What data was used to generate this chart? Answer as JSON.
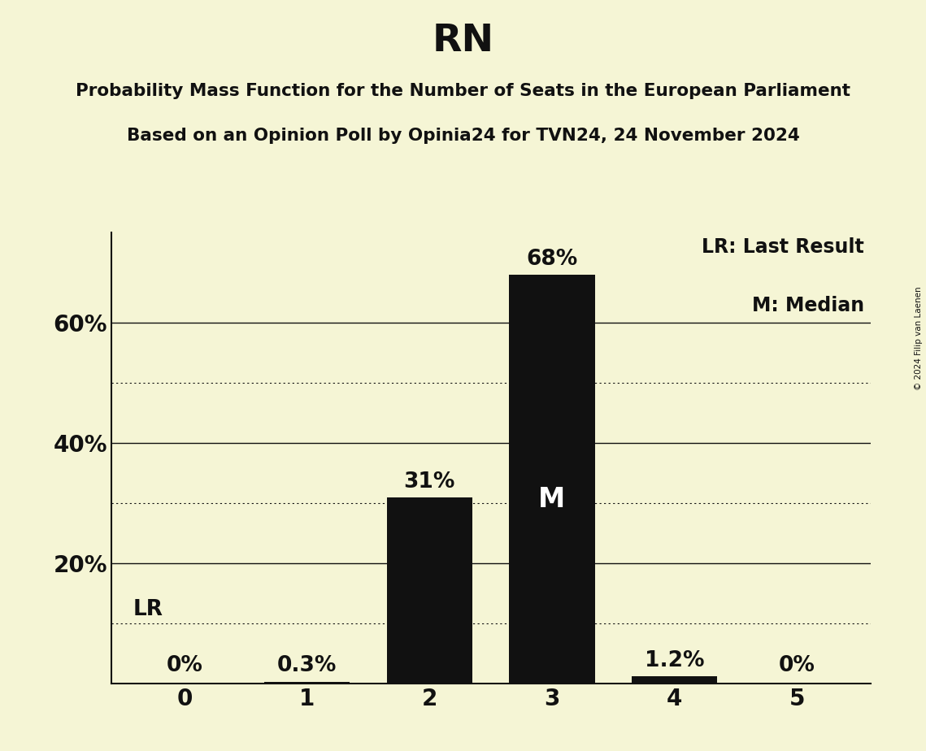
{
  "title": "RN",
  "subtitle1": "Probability Mass Function for the Number of Seats in the European Parliament",
  "subtitle2": "Based on an Opinion Poll by Opinia24 for TVN24, 24 November 2024",
  "copyright": "© 2024 Filip van Laenen",
  "categories": [
    0,
    1,
    2,
    3,
    4,
    5
  ],
  "values": [
    0.0,
    0.3,
    31.0,
    68.0,
    1.2,
    0.0
  ],
  "bar_color": "#111111",
  "background_color": "#f5f5d5",
  "bar_labels": [
    "0%",
    "0.3%",
    "31%",
    "68%",
    "1.2%",
    "0%"
  ],
  "median_bar": 3,
  "median_label": "M",
  "last_result_pct": 10.0,
  "last_result_label": "LR",
  "yticks_solid": [
    20,
    40,
    60
  ],
  "yticks_dotted": [
    10,
    30,
    50
  ],
  "ylim": [
    0,
    75
  ],
  "legend_lr": "LR: Last Result",
  "legend_m": "M: Median",
  "title_fontsize": 34,
  "subtitle_fontsize": 15.5,
  "axis_tick_fontsize": 20,
  "bar_label_fontsize": 19,
  "legend_fontsize": 17
}
